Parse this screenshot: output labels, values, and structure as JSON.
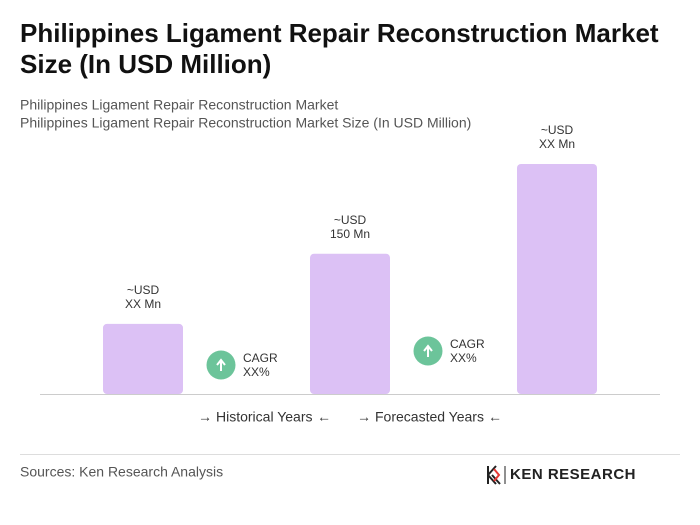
{
  "chart_data": {
    "type": "bar",
    "title": [
      "Philippines Ligament Repair Reconstruction Market",
      "Size (In USD Million)"
    ],
    "subtitle": [
      "Philippines Ligament Repair Reconstruction Market",
      "Philippines Ligament Repair Reconstruction Market Size (In USD Million)"
    ],
    "categories": [
      null,
      null,
      null
    ],
    "values": [
      75,
      150,
      246
    ],
    "value_labels": [
      [
        "~USD",
        "XX Mn"
      ],
      [
        "~USD",
        "150 Mn"
      ],
      [
        "~USD",
        "XX Mn"
      ]
    ],
    "color": "#dcc1f5",
    "annotations": [
      [
        "CAGR",
        "XX%"
      ],
      [
        "CAGR",
        "XX%"
      ]
    ],
    "annotation_color": "#6cc49a",
    "periods": [
      "Historical Years",
      "Forecasted Years"
    ],
    "source": "Sources: Ken Research Analysis",
    "brand": "KEN RESEARCH"
  }
}
